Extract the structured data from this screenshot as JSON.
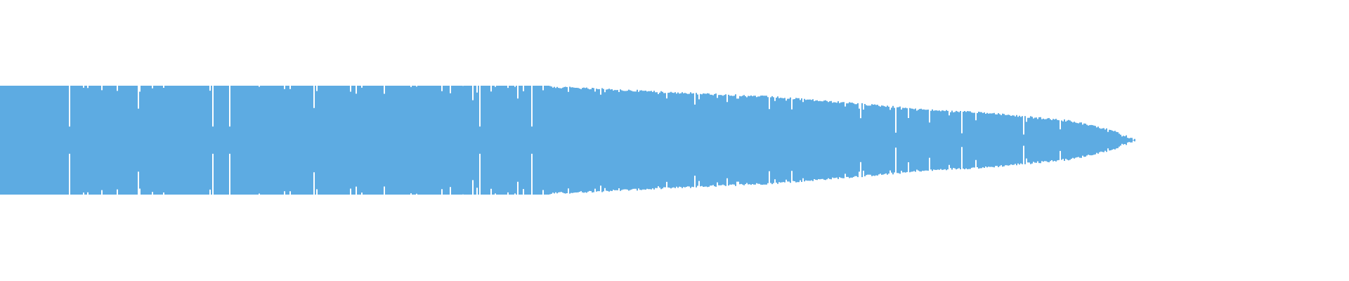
{
  "waveform": {
    "color": "#5dabe2",
    "background": "#ffffff"
  }
}
